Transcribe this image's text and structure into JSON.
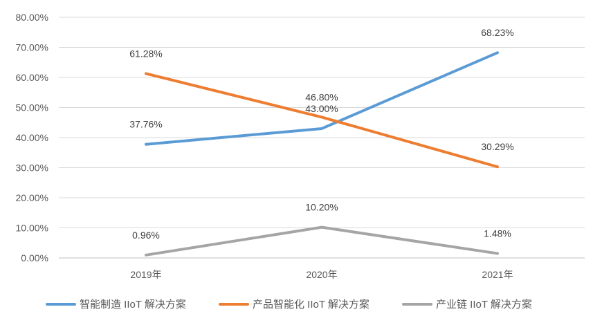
{
  "chart_data": {
    "type": "line",
    "categories": [
      "2019年",
      "2020年",
      "2021年"
    ],
    "ylim": [
      0,
      80
    ],
    "y_ticks": [
      "0.00%",
      "10.00%",
      "20.00%",
      "30.00%",
      "40.00%",
      "50.00%",
      "60.00%",
      "70.00%",
      "80.00%"
    ],
    "grid": true,
    "legend_position": "bottom",
    "series": [
      {
        "name": "智能制造 IIoT 解决方案",
        "color": "#5B9BD5",
        "values": [
          37.76,
          43.0,
          68.23
        ],
        "labels": [
          "37.76%",
          "43.00%",
          "68.23%"
        ]
      },
      {
        "name": "产品智能化 IIoT 解决方案",
        "color": "#ED7D31",
        "values": [
          61.28,
          46.8,
          30.29
        ],
        "labels": [
          "61.28%",
          "46.80%",
          "30.29%"
        ]
      },
      {
        "name": "产业链 IIoT 解决方案",
        "color": "#A5A5A5",
        "values": [
          0.96,
          10.2,
          1.48
        ],
        "labels": [
          "0.96%",
          "10.20%",
          "1.48%"
        ]
      }
    ]
  }
}
